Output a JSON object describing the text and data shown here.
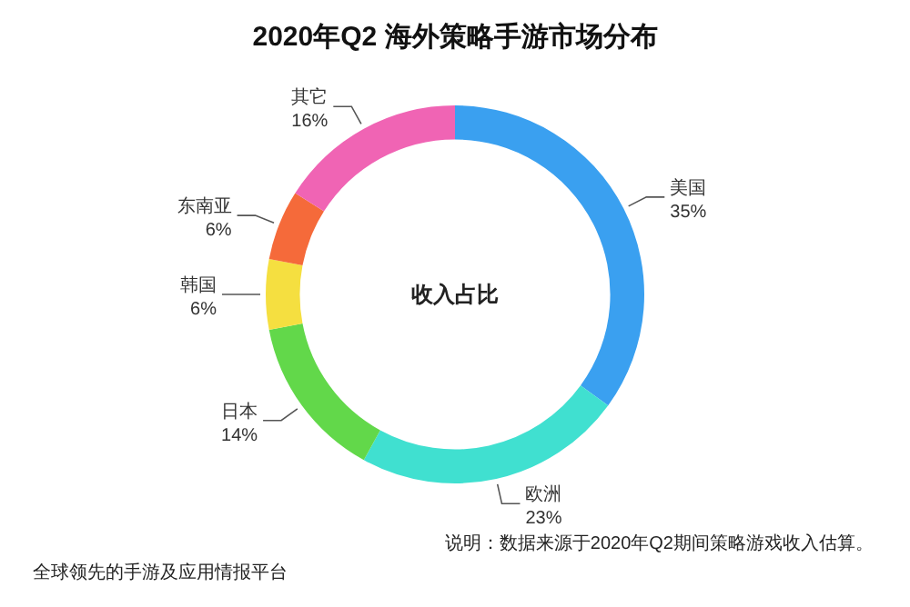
{
  "chart_data": {
    "type": "donut",
    "title": "2020年Q2 海外策略手游市场分布",
    "categories": [
      "美国",
      "欧洲",
      "日本",
      "韩国",
      "东南亚",
      "其它"
    ],
    "values": [
      35,
      23,
      14,
      6,
      6,
      16
    ],
    "colors": [
      "#3aa0f0",
      "#40e0d0",
      "#62d84a",
      "#f5df40",
      "#f56a3a",
      "#f064b4"
    ],
    "value_labels": [
      "35%",
      "23%",
      "14%",
      "6%",
      "6%",
      "16%"
    ],
    "legend": false,
    "annotations": [
      "收入占比",
      "说明：数据来源于2020年Q2期间策略游戏收入估算。",
      "全球领先的手游及应用情报平台"
    ]
  }
}
